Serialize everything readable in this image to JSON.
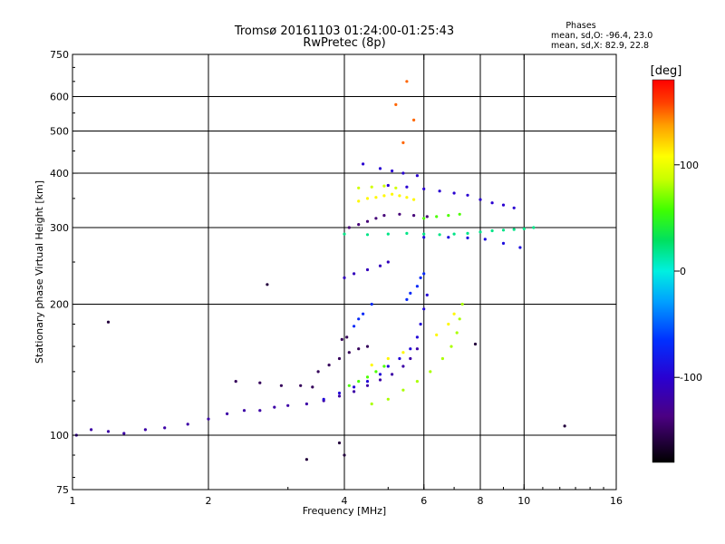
{
  "chart_data": {
    "type": "scatter",
    "title": "Tromsø 20161103 01:24:00-01:25:43",
    "subtitle": "RwPretec (8p)",
    "xlabel": "Frequency [MHz]",
    "ylabel": "Stationary phase Virtual Height [km]",
    "x_scale": "log",
    "y_scale": "log",
    "xlim": [
      1,
      16
    ],
    "ylim": [
      75,
      750
    ],
    "x_ticks": [
      {
        "v": 1,
        "label": "1"
      },
      {
        "v": 2,
        "label": "2"
      },
      {
        "v": 4,
        "label": "4"
      },
      {
        "v": 6,
        "label": "6"
      },
      {
        "v": 8,
        "label": "8"
      },
      {
        "v": 10,
        "label": "10"
      },
      {
        "v": 16,
        "label": "16"
      }
    ],
    "y_ticks": [
      {
        "v": 75,
        "label": "75"
      },
      {
        "v": 100,
        "label": "100"
      },
      {
        "v": 200,
        "label": "200"
      },
      {
        "v": 300,
        "label": "300"
      },
      {
        "v": 400,
        "label": "400"
      },
      {
        "v": 500,
        "label": "500"
      },
      {
        "v": 600,
        "label": "600"
      },
      {
        "v": 750,
        "label": "750"
      }
    ],
    "x_grid": [
      2,
      4,
      6,
      8,
      10
    ],
    "y_grid": [
      100,
      200,
      300,
      400,
      500,
      600
    ],
    "grid": true,
    "phases_header": "Phases",
    "stats": [
      "mean, sd,O: -96.4, 23.0",
      "mean, sd,X:  82.9, 22.8"
    ],
    "colorbar": {
      "label": "[deg]",
      "ticks": [
        {
          "v": 100,
          "label": "100"
        },
        {
          "v": 0,
          "label": "0"
        },
        {
          "v": -100,
          "label": "-100"
        }
      ],
      "range": [
        -180,
        180
      ]
    },
    "series": [
      {
        "phase": -120,
        "points": [
          [
            1.02,
            100
          ],
          [
            1.1,
            103
          ],
          [
            1.2,
            102
          ],
          [
            1.3,
            101
          ],
          [
            1.45,
            103
          ],
          [
            1.6,
            104
          ],
          [
            1.8,
            106
          ],
          [
            2.0,
            109
          ],
          [
            2.2,
            112
          ],
          [
            2.4,
            114
          ],
          [
            2.6,
            114
          ],
          [
            2.8,
            116
          ],
          [
            3.0,
            117
          ],
          [
            3.3,
            118
          ],
          [
            3.6,
            120
          ],
          [
            3.9,
            123
          ],
          [
            4.2,
            126
          ],
          [
            4.5,
            130
          ],
          [
            4.8,
            134
          ],
          [
            5.1,
            138
          ],
          [
            5.4,
            144
          ],
          [
            5.6,
            150
          ],
          [
            5.8,
            158
          ]
        ]
      },
      {
        "phase": -95,
        "points": [
          [
            3.6,
            121
          ],
          [
            3.9,
            125
          ],
          [
            4.2,
            129
          ],
          [
            4.5,
            133
          ],
          [
            4.8,
            138
          ],
          [
            5.0,
            144
          ],
          [
            5.3,
            150
          ],
          [
            5.6,
            158
          ],
          [
            5.8,
            168
          ],
          [
            5.9,
            180
          ],
          [
            6.0,
            195
          ],
          [
            6.1,
            210
          ]
        ]
      },
      {
        "phase": -150,
        "points": [
          [
            2.3,
            133
          ],
          [
            2.6,
            132
          ],
          [
            2.9,
            130
          ],
          [
            3.2,
            130
          ],
          [
            3.4,
            129
          ],
          [
            3.5,
            140
          ],
          [
            3.7,
            145
          ],
          [
            3.9,
            150
          ],
          [
            4.1,
            155
          ],
          [
            4.3,
            158
          ],
          [
            4.5,
            160
          ],
          [
            3.95,
            166
          ],
          [
            4.05,
            168
          ]
        ]
      },
      {
        "phase": -70,
        "points": [
          [
            4.2,
            178
          ],
          [
            4.3,
            185
          ],
          [
            4.4,
            190
          ],
          [
            4.6,
            200
          ],
          [
            5.5,
            205
          ],
          [
            5.6,
            212
          ],
          [
            5.8,
            220
          ],
          [
            5.9,
            230
          ],
          [
            6.0,
            235
          ]
        ]
      },
      {
        "phase": -110,
        "points": [
          [
            4.0,
            230
          ],
          [
            4.2,
            235
          ],
          [
            4.5,
            240
          ],
          [
            4.8,
            245
          ],
          [
            5.0,
            250
          ]
        ]
      },
      {
        "phase": 80,
        "points": [
          [
            4.6,
            118
          ],
          [
            5.0,
            121
          ],
          [
            5.4,
            127
          ],
          [
            5.8,
            133
          ],
          [
            6.2,
            140
          ],
          [
            6.6,
            150
          ],
          [
            6.9,
            160
          ],
          [
            7.1,
            172
          ],
          [
            7.2,
            185
          ],
          [
            7.3,
            200
          ]
        ]
      },
      {
        "phase": 110,
        "points": [
          [
            4.6,
            145
          ],
          [
            5.0,
            150
          ],
          [
            5.4,
            155
          ],
          [
            6.4,
            170
          ],
          [
            6.8,
            180
          ],
          [
            7.0,
            190
          ]
        ]
      },
      {
        "phase": 60,
        "points": [
          [
            4.1,
            130
          ],
          [
            4.3,
            133
          ],
          [
            4.5,
            136
          ],
          [
            4.7,
            140
          ],
          [
            4.9,
            144
          ]
        ]
      },
      {
        "phase": 20,
        "points": [
          [
            4.0,
            290
          ],
          [
            4.5,
            289
          ],
          [
            5.0,
            290
          ],
          [
            5.5,
            291
          ],
          [
            6.0,
            290
          ],
          [
            6.5,
            289
          ],
          [
            7.0,
            290
          ],
          [
            7.5,
            291
          ],
          [
            8.0,
            293
          ],
          [
            8.5,
            295
          ],
          [
            9.0,
            296
          ],
          [
            9.5,
            297
          ],
          [
            10.0,
            298
          ],
          [
            10.5,
            300
          ]
        ]
      },
      {
        "phase": 110,
        "points": [
          [
            4.3,
            345
          ],
          [
            4.5,
            350
          ],
          [
            4.7,
            352
          ],
          [
            4.9,
            355
          ],
          [
            5.1,
            358
          ],
          [
            5.3,
            355
          ],
          [
            5.5,
            352
          ],
          [
            5.7,
            348
          ]
        ]
      },
      {
        "phase": 90,
        "points": [
          [
            4.3,
            370
          ],
          [
            4.6,
            372
          ],
          [
            4.9,
            374
          ],
          [
            5.2,
            370
          ]
        ]
      },
      {
        "phase": 60,
        "points": [
          [
            6.0,
            315
          ],
          [
            6.4,
            318
          ],
          [
            6.8,
            320
          ],
          [
            7.2,
            322
          ]
        ]
      },
      {
        "phase": -100,
        "points": [
          [
            5.0,
            375
          ],
          [
            5.5,
            372
          ],
          [
            6.0,
            368
          ],
          [
            6.5,
            364
          ],
          [
            7.0,
            360
          ],
          [
            7.5,
            356
          ],
          [
            8.0,
            348
          ],
          [
            8.5,
            342
          ],
          [
            9.0,
            338
          ],
          [
            9.5,
            333
          ]
        ]
      },
      {
        "phase": -140,
        "points": [
          [
            4.1,
            300
          ],
          [
            4.3,
            305
          ],
          [
            4.5,
            310
          ],
          [
            4.7,
            315
          ],
          [
            4.9,
            320
          ],
          [
            5.3,
            322
          ],
          [
            5.7,
            320
          ],
          [
            6.1,
            318
          ]
        ]
      },
      {
        "phase": -90,
        "points": [
          [
            6.0,
            285
          ],
          [
            6.8,
            285
          ],
          [
            7.5,
            284
          ],
          [
            8.2,
            282
          ],
          [
            9.0,
            276
          ],
          [
            9.8,
            270
          ]
        ]
      },
      {
        "phase": -100,
        "points": [
          [
            4.4,
            420
          ],
          [
            4.8,
            410
          ],
          [
            5.1,
            405
          ],
          [
            5.4,
            400
          ],
          [
            5.8,
            395
          ]
        ]
      },
      {
        "phase": 150,
        "points": [
          [
            5.4,
            470
          ],
          [
            5.7,
            530
          ],
          [
            5.5,
            650
          ],
          [
            5.2,
            575
          ]
        ]
      },
      {
        "phase": -160,
        "points": [
          [
            2.7,
            222
          ],
          [
            3.3,
            88
          ],
          [
            3.9,
            96
          ],
          [
            4.0,
            90
          ],
          [
            1.2,
            182
          ],
          [
            12.3,
            105
          ],
          [
            7.8,
            162
          ]
        ]
      }
    ]
  }
}
